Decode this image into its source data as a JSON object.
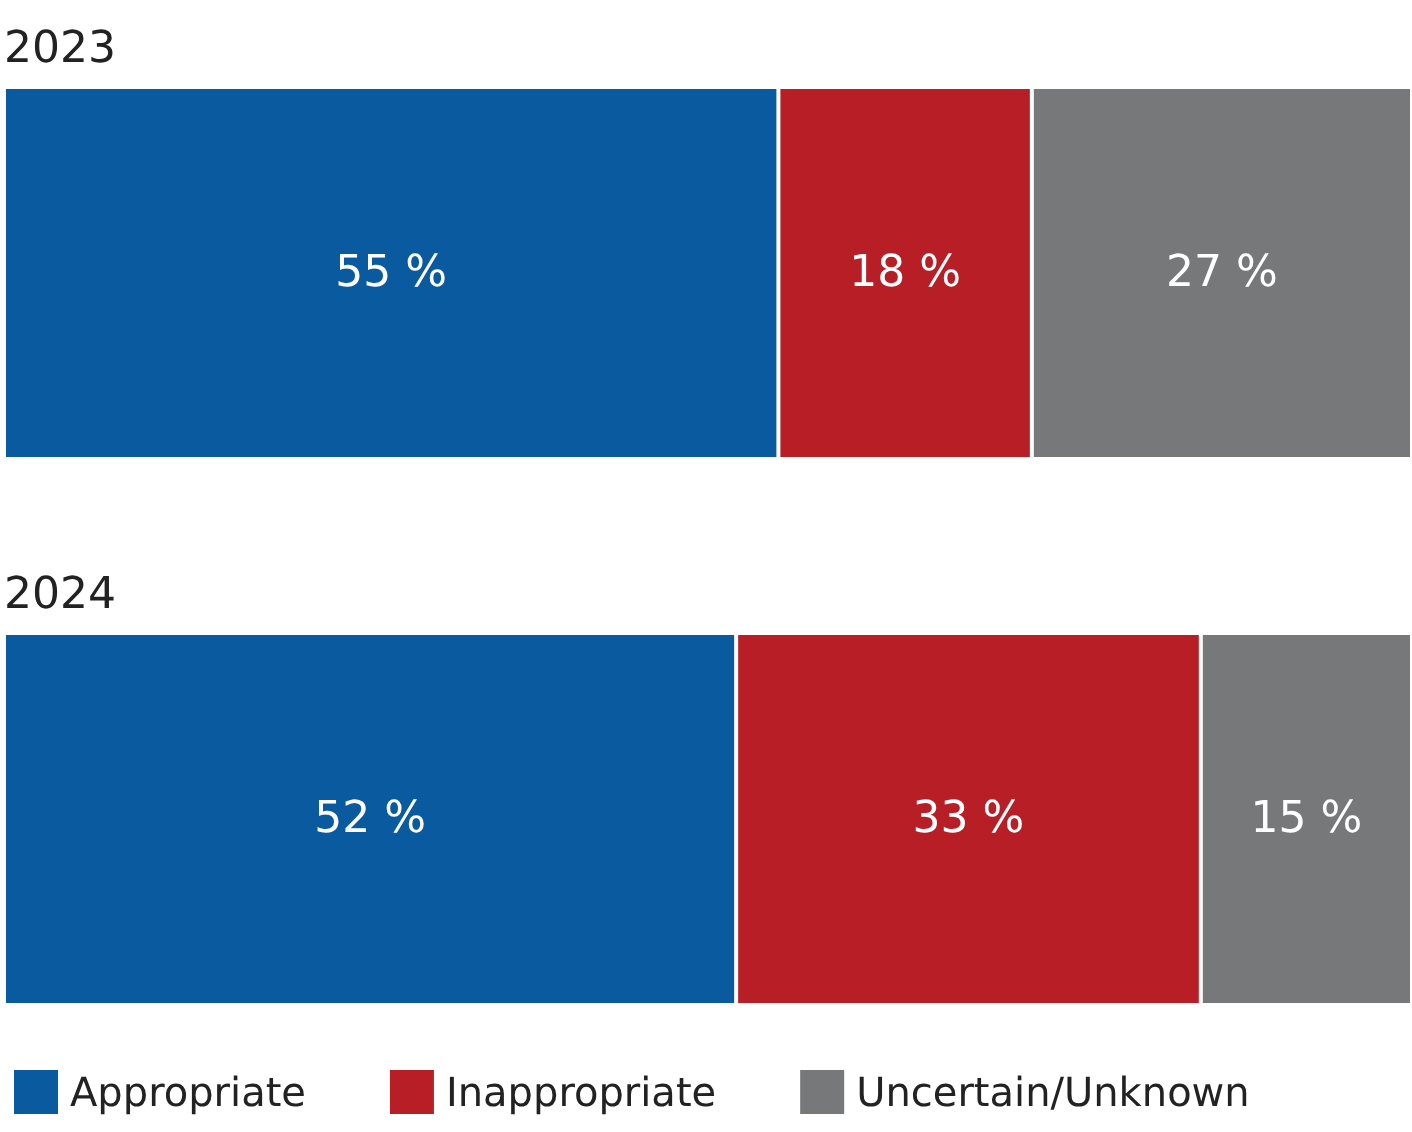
{
  "chart_data": {
    "type": "bar",
    "orientation": "horizontal",
    "stacked": true,
    "categories": [
      "2023",
      "2024"
    ],
    "xlim": [
      0,
      100
    ],
    "legend": "bottom left",
    "tick_labels": "y",
    "series": [
      {
        "name": "Appropriate",
        "color": "#0a5aa0",
        "values": [
          55,
          52
        ],
        "value_labels": [
          "55 %",
          "52 %"
        ]
      },
      {
        "name": "Inappropriate",
        "color": "#b81e25",
        "values": [
          18,
          33
        ],
        "value_labels": [
          "18 %",
          "33 %"
        ]
      },
      {
        "name": "Uncertain/Unknown",
        "color": "#76787a",
        "values": [
          27,
          15
        ],
        "value_labels": [
          "27 %",
          "15 %"
        ]
      }
    ]
  }
}
